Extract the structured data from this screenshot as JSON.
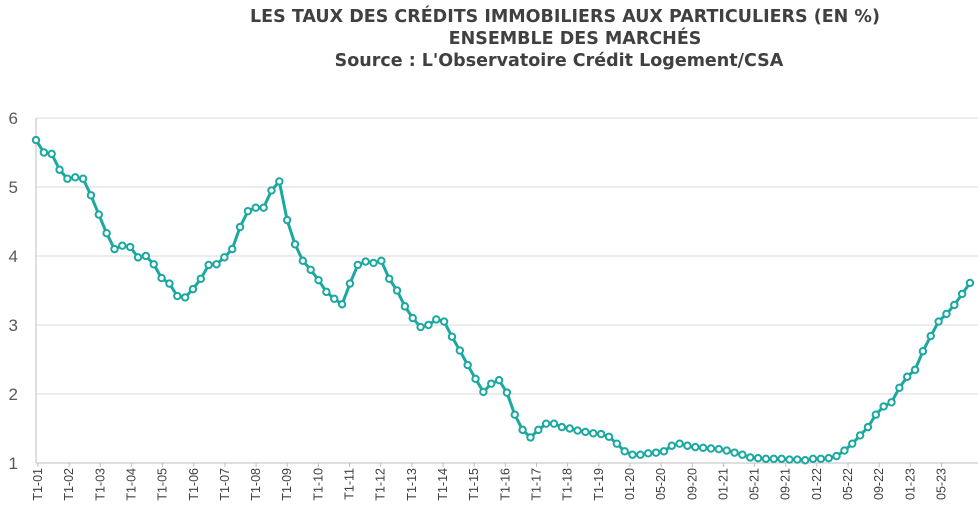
{
  "header": {
    "title": "LES TAUX DES CRÉDITS IMMOBILIERS AUX PARTICULIERS (EN %)",
    "subtitle": "ENSEMBLE DES MARCHÉS",
    "source": "Source : L'Observatoire Crédit Logement/CSA"
  },
  "colors": {
    "line": "#1BA8A0",
    "grid": "#D9D9D9",
    "axis_text": "#404040",
    "point_fill": "#ffffff"
  },
  "chart_data": {
    "type": "line",
    "title": "LES TAUX DES CRÉDITS IMMOBILIERS AUX PARTICULIERS (EN %)",
    "subtitle": "ENSEMBLE DES MARCHÉS",
    "xlabel": "",
    "ylabel": "",
    "ylim": [
      1,
      6
    ],
    "yticks": [
      1,
      2,
      3,
      4,
      5,
      6
    ],
    "grid": "horizontal",
    "legend": "none",
    "x_tick_labels": [
      "T1-01",
      "T1-02",
      "T1-03",
      "T1-04",
      "T1-05",
      "T1-06",
      "T1-07",
      "T1-08",
      "T1-09",
      "T1-10",
      "T1-11",
      "T1-12",
      "T1-13",
      "T1-14",
      "T1-15",
      "T1-16",
      "T1-17",
      "T1-18",
      "T1-19",
      "01-20",
      "05-20",
      "09-20",
      "01-21",
      "05-21",
      "09-21",
      "01-22",
      "05-22",
      "09-22",
      "01-23",
      "05-23"
    ],
    "series": [
      {
        "values": [
          5.68,
          5.5,
          5.48,
          5.25,
          5.12,
          5.14,
          5.12,
          4.88,
          4.6,
          4.33,
          4.1,
          4.15,
          4.13,
          3.98,
          4.0,
          3.88,
          3.68,
          3.6,
          3.42,
          3.4,
          3.52,
          3.67,
          3.87,
          3.88,
          3.98,
          4.1,
          4.42,
          4.65,
          4.7,
          4.7,
          4.95,
          5.08,
          4.52,
          4.17,
          3.93,
          3.8,
          3.65,
          3.48,
          3.38,
          3.3,
          3.6,
          3.87,
          3.92,
          3.9,
          3.93,
          3.67,
          3.5,
          3.27,
          3.1,
          2.97,
          3.0,
          3.08,
          3.05,
          2.83,
          2.63,
          2.42,
          2.22,
          2.03,
          2.15,
          2.2,
          2.02,
          1.7,
          1.48,
          1.37,
          1.48,
          1.57,
          1.57,
          1.52,
          1.5,
          1.47,
          1.45,
          1.43,
          1.42,
          1.38,
          1.28,
          1.17,
          1.12,
          1.12,
          1.14,
          1.15,
          1.17,
          1.25,
          1.28,
          1.25,
          1.23,
          1.22,
          1.21,
          1.2,
          1.18,
          1.15,
          1.12,
          1.08,
          1.07,
          1.06,
          1.06,
          1.06,
          1.05,
          1.05,
          1.04,
          1.06,
          1.06,
          1.07,
          1.1,
          1.18,
          1.28,
          1.4,
          1.52,
          1.7,
          1.82,
          1.88,
          2.09,
          2.25,
          2.35,
          2.62,
          2.84,
          3.05,
          3.16,
          3.29,
          3.45,
          3.61
        ]
      }
    ]
  }
}
